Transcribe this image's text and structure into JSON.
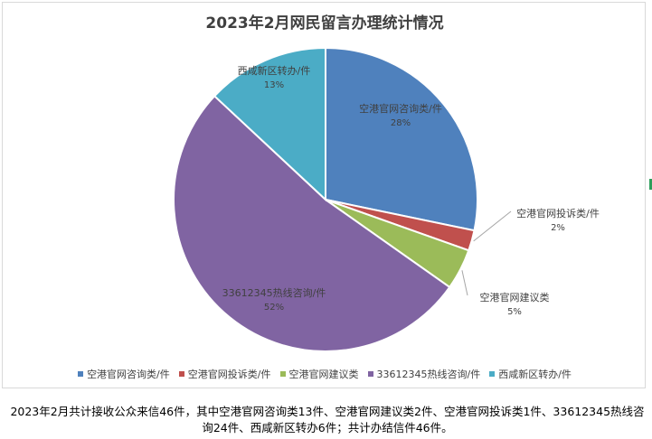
{
  "chart_data": {
    "type": "pie",
    "title": "2023年2月网民留言办理统计情况",
    "slices": [
      {
        "label": "空港官网咨询类/件",
        "percent_label": "28%",
        "value": 13,
        "color": "#4f81bd"
      },
      {
        "label": "空港官网投诉类/件",
        "percent_label": "2%",
        "value": 1,
        "color": "#c0504d"
      },
      {
        "label": "空港官网建议类",
        "percent_label": "5%",
        "value": 2,
        "color": "#9bbb59"
      },
      {
        "label": "33612345热线咨询/件",
        "percent_label": "52%",
        "value": 24,
        "color": "#8064a2"
      },
      {
        "label": "西咸新区转办/件",
        "percent_label": "13%",
        "value": 6,
        "color": "#4bacc6"
      }
    ],
    "legend_placement": "bottom"
  },
  "footnote": "2023年2月共计接收公众来信46件，其中空港官网咨询类13件、空港官网建议类2件、空港官网投诉类1件、33612345热线咨询24件、西咸新区转办6件；共计办结信件46件。"
}
